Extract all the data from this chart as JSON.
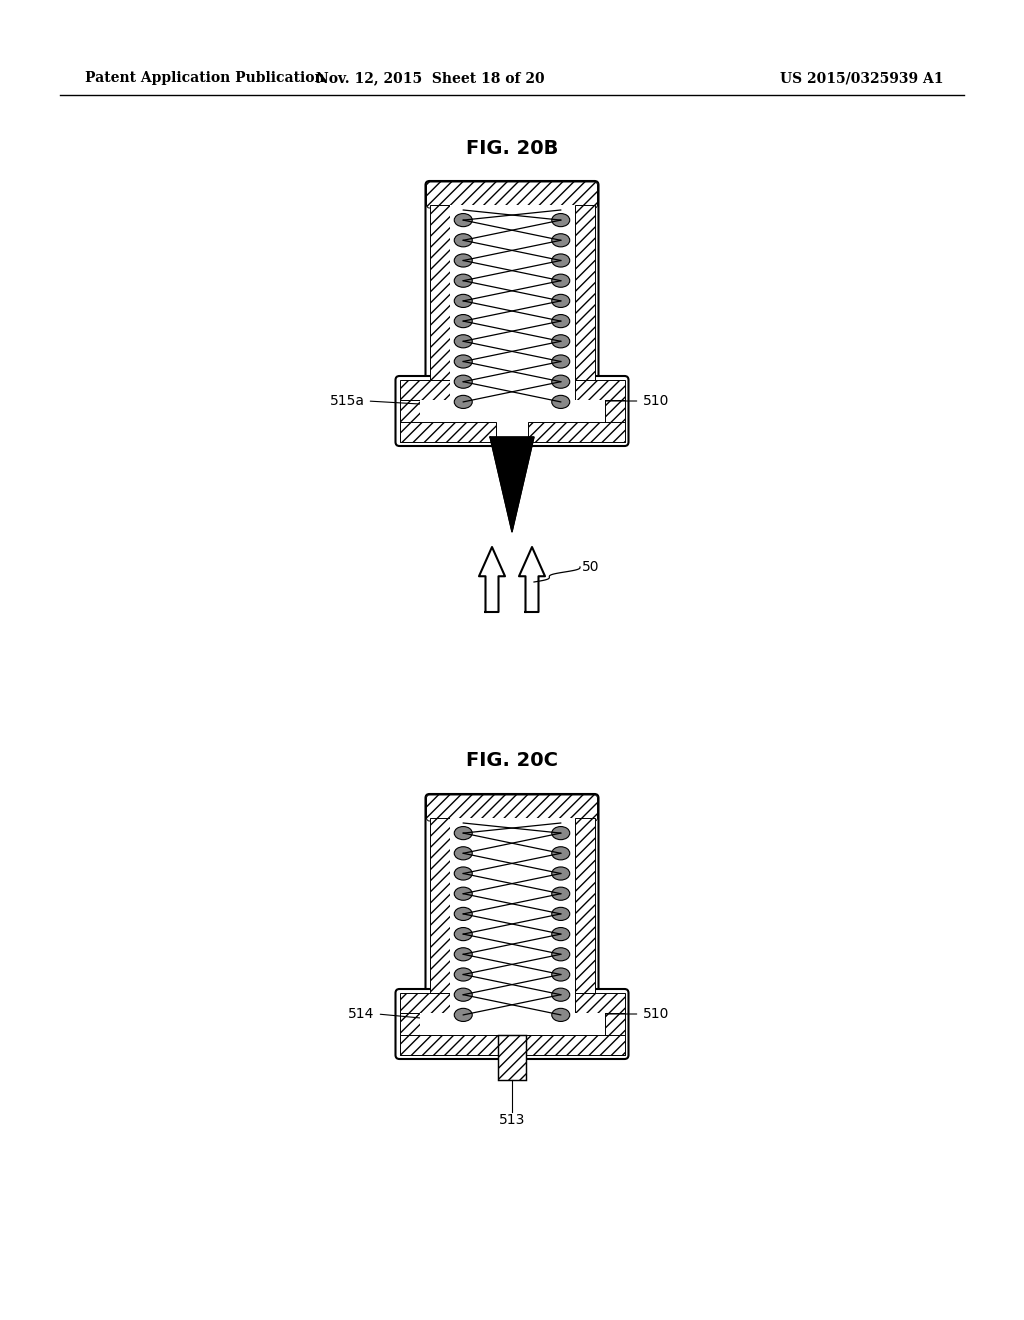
{
  "background_color": "#ffffff",
  "header_left": "Patent Application Publication",
  "header_middle": "Nov. 12, 2015  Sheet 18 of 20",
  "header_right": "US 2015/0325939 A1",
  "fig_20b_label": "FIG. 20B",
  "fig_20c_label": "FIG. 20C",
  "label_510_b": "510",
  "label_515a": "515a",
  "label_50": "50",
  "label_510_c": "510",
  "label_514": "514",
  "label_513": "513",
  "hatch_pattern": "///",
  "hatch_color": "#000000",
  "line_color": "#000000",
  "fill_light": "#ffffff",
  "fill_dark": "#000000"
}
